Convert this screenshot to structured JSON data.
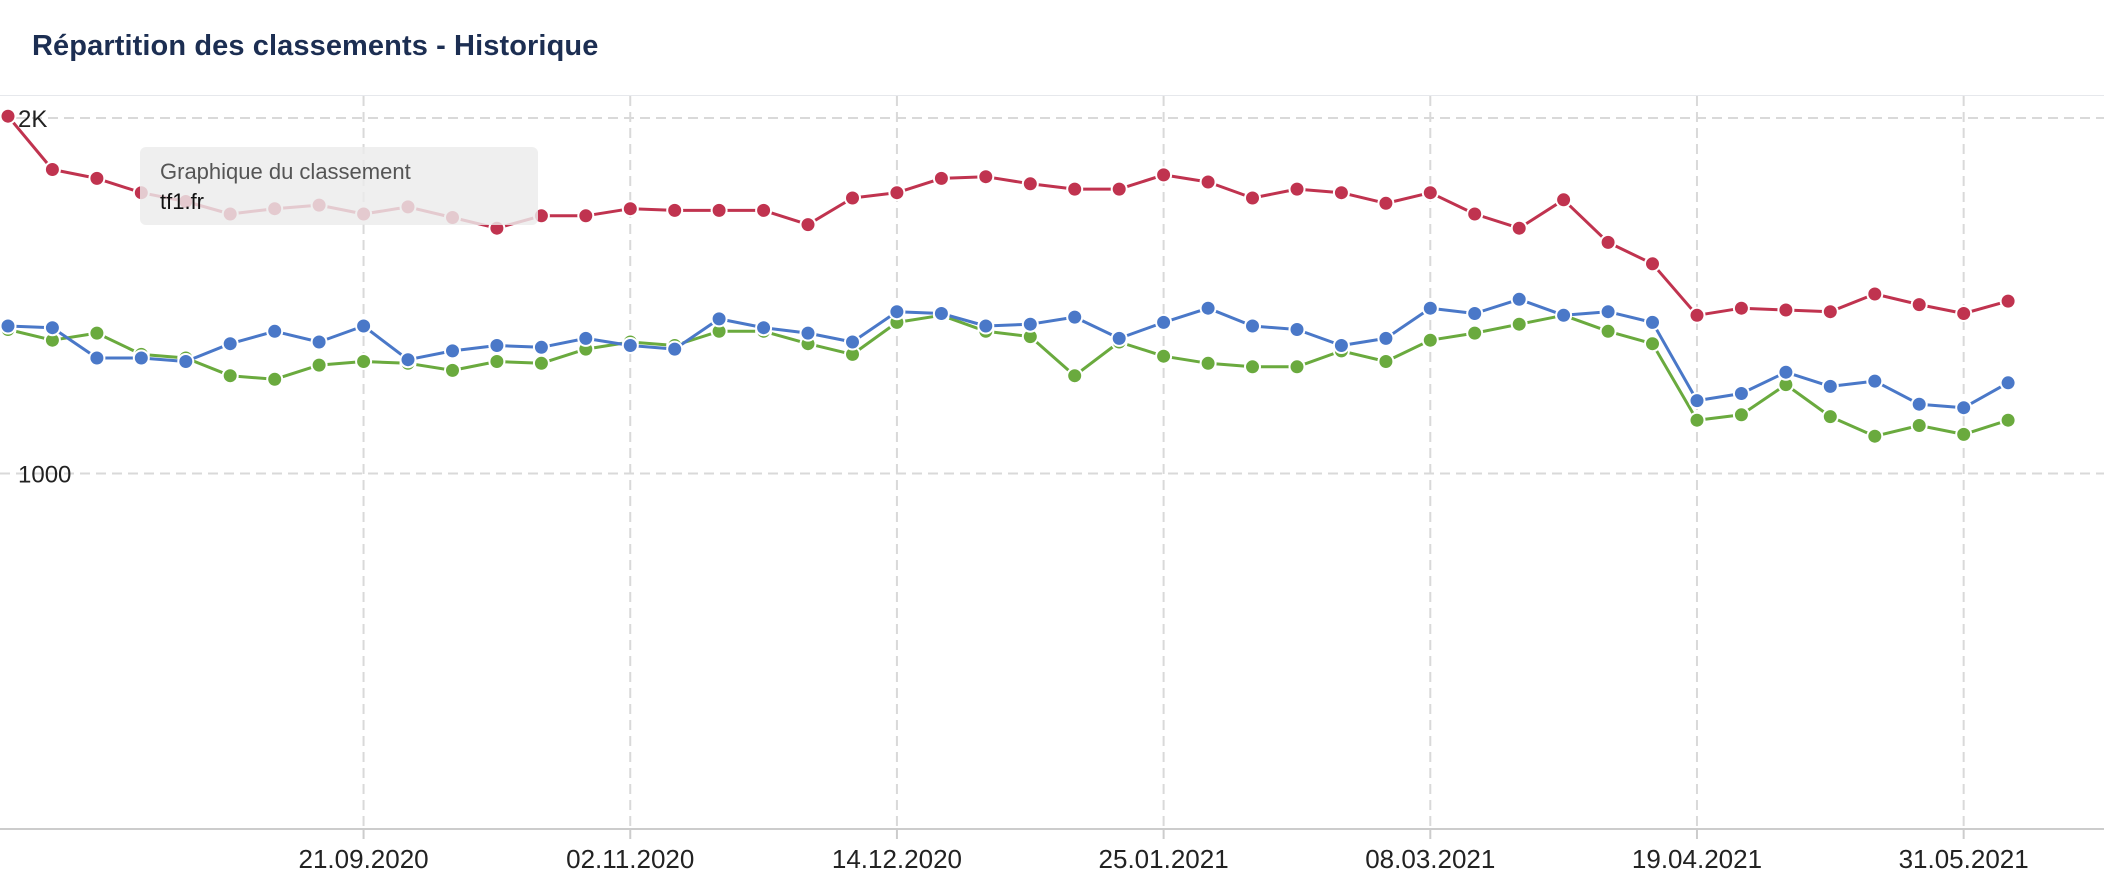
{
  "header": {
    "title": "Répartition des classements - Historique"
  },
  "tooltip": {
    "title": "Graphique du classement",
    "value": "tf1.fr"
  },
  "colors": {
    "red": "#c0334f",
    "blue": "#4a78c8",
    "green": "#6aaa3e",
    "grid": "#d9d9d9",
    "axis": "#cccccc"
  },
  "chart_data": {
    "type": "line",
    "title": "Répartition des classements - Historique",
    "xlabel": "",
    "ylabel": "",
    "ylim": [
      0,
      2000
    ],
    "yticks": [
      {
        "value": 1000,
        "label": "1000"
      },
      {
        "value": 2000,
        "label": "2K"
      }
    ],
    "x_start": "2020-07-27",
    "x_step_days": 7,
    "x_end": "2021-06-21",
    "xticks": [
      {
        "date": "2020-09-21",
        "label": "21.09.2020"
      },
      {
        "date": "2020-11-02",
        "label": "02.11.2020"
      },
      {
        "date": "2020-12-14",
        "label": "14.12.2020"
      },
      {
        "date": "2021-01-25",
        "label": "25.01.2021"
      },
      {
        "date": "2021-03-08",
        "label": "08.03.2021"
      },
      {
        "date": "2021-04-19",
        "label": "19.04.2021"
      },
      {
        "date": "2021-05-31",
        "label": "31.05.2021"
      }
    ],
    "grid": true,
    "legend": "none",
    "series": [
      {
        "color": "red",
        "values": [
          2005,
          1855,
          1830,
          1790,
          1765,
          1730,
          1745,
          1755,
          1730,
          1750,
          1720,
          1690,
          1725,
          1725,
          1745,
          1740,
          1740,
          1740,
          1700,
          1775,
          1790,
          1830,
          1835,
          1815,
          1800,
          1800,
          1840,
          1820,
          1775,
          1800,
          1790,
          1760,
          1790,
          1730,
          1690,
          1770,
          1650,
          1590,
          1445,
          1465,
          1460,
          1455,
          1505,
          1475,
          1450,
          1485
        ]
      },
      {
        "color": "blue",
        "values": [
          1415,
          1410,
          1325,
          1325,
          1315,
          1365,
          1400,
          1370,
          1415,
          1320,
          1345,
          1360,
          1355,
          1380,
          1360,
          1350,
          1435,
          1410,
          1395,
          1370,
          1455,
          1450,
          1415,
          1420,
          1440,
          1380,
          1425,
          1465,
          1415,
          1405,
          1360,
          1380,
          1465,
          1450,
          1490,
          1445,
          1455,
          1425,
          1205,
          1225,
          1285,
          1245,
          1260,
          1195,
          1185,
          1255
        ]
      },
      {
        "color": "green",
        "values": [
          1405,
          1375,
          1395,
          1335,
          1325,
          1275,
          1265,
          1305,
          1315,
          1310,
          1290,
          1315,
          1310,
          1350,
          1370,
          1360,
          1400,
          1400,
          1365,
          1335,
          1425,
          1445,
          1400,
          1385,
          1275,
          1370,
          1330,
          1310,
          1300,
          1300,
          1345,
          1315,
          1375,
          1395,
          1420,
          1445,
          1400,
          1365,
          1150,
          1165,
          1250,
          1160,
          1105,
          1135,
          1110,
          1150
        ]
      }
    ]
  }
}
